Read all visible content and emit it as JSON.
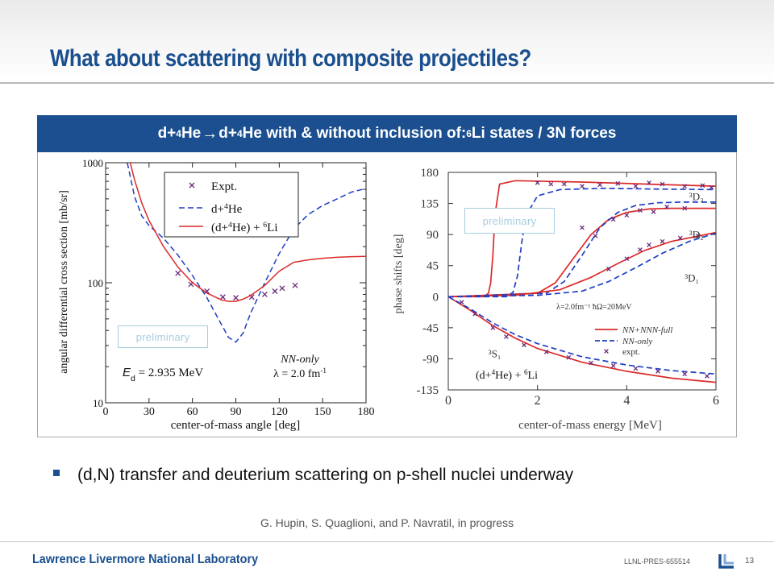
{
  "slide": {
    "title": "What about scattering with composite projectiles?",
    "banner": {
      "part1": "d+",
      "sup1": "4",
      "part2": "He",
      "arrow": "→",
      "part3": "d+",
      "sup2": "4",
      "part4": "He with & without inclusion of: ",
      "sup3": "6",
      "part5": "Li states / 3N forces"
    },
    "bullet": "(d,N) transfer and deuterium scattering on p-shell nuclei underway",
    "citation": "G. Hupin, S. Quaglioni, and P. Navratil, in progress",
    "footer": {
      "lab": "Lawrence Livermore National Laboratory",
      "code": "LLNL-PRES-655514",
      "page": "13"
    },
    "colors": {
      "brand": "#1b4f8f",
      "title": "#1a4f8e",
      "red": "#dc2a2a",
      "blue": "#1f3fc4",
      "expt": "#6a2a7a",
      "watermark": "#a8cde0"
    }
  },
  "chart_data": [
    {
      "type": "line",
      "xlabel": "center-of-mass angle [deg]",
      "ylabel": "angular differential cross section [mb/sr]",
      "xlim": [
        0,
        180
      ],
      "ylim": [
        10,
        1000
      ],
      "yscale": "log",
      "xticks": [
        "0",
        "30",
        "60",
        "90",
        "120",
        "150",
        "180"
      ],
      "yticks": [
        "10",
        "100",
        "1000"
      ],
      "legend": {
        "position": "top-center",
        "entries": [
          "Expt.",
          "d+4He",
          "(d+4He) + 6Li"
        ]
      },
      "legend_parts": {
        "expt": "Expt.",
        "blue_a": "d+",
        "blue_sup": "4",
        "blue_b": "He",
        "red_a": "(d+",
        "red_sup1": "4",
        "red_b": "He) + ",
        "red_sup2": "6",
        "red_c": "Li"
      },
      "watermark": "preliminary",
      "energy_label": {
        "symbol": "E",
        "sub": "d",
        "value": " = 2.935 MeV"
      },
      "nn_label": {
        "line1": "NN-only",
        "line2a": "λ = 2.0 fm",
        "line2sup": "-1"
      },
      "series": [
        {
          "name": "Expt.",
          "style": "markers",
          "x": [
            50,
            59,
            70,
            81,
            90,
            101,
            110,
            117,
            122,
            131
          ],
          "y": [
            120,
            97,
            85,
            76,
            75,
            76,
            80,
            85,
            90,
            95
          ]
        },
        {
          "name": "d+4He",
          "style": "dashed",
          "x": [
            15,
            20,
            25,
            30,
            40,
            50,
            60,
            70,
            80,
            85,
            90,
            95,
            100,
            110,
            120,
            130,
            140,
            150,
            160,
            170,
            180
          ],
          "y": [
            1000,
            520,
            360,
            300,
            235,
            170,
            115,
            75,
            45,
            35,
            32,
            38,
            55,
            100,
            175,
            280,
            370,
            440,
            500,
            570,
            610
          ]
        },
        {
          "name": "(d+4He) + 6Li",
          "style": "solid",
          "x": [
            17,
            20,
            25,
            30,
            40,
            50,
            60,
            70,
            80,
            85,
            90,
            95,
            100,
            110,
            120,
            130,
            140,
            150,
            160,
            170,
            180
          ],
          "y": [
            1000,
            720,
            460,
            330,
            200,
            135,
            100,
            82,
            72,
            70,
            70,
            73,
            78,
            95,
            125,
            148,
            155,
            160,
            163,
            165,
            166
          ]
        }
      ]
    },
    {
      "type": "line",
      "xlabel": "center-of-mass energy [MeV]",
      "ylabel": "phase shifts [deg]",
      "xlim": [
        0,
        6
      ],
      "ylim": [
        -135,
        180
      ],
      "xticks": [
        "0",
        "2",
        "4",
        "6"
      ],
      "yticks": [
        "180",
        "135",
        "90",
        "45",
        "0",
        "-45",
        "-90",
        "-135"
      ],
      "legend": {
        "position": "lower-right",
        "entries": [
          "NN+NNN-full",
          "NN-only",
          "expt."
        ]
      },
      "legend_parts": {
        "full": "NN+NNN-full",
        "nn": "NN-only",
        "expt": "expt."
      },
      "watermark": "preliminary",
      "parameter_label": "λ=2.0fm⁻¹  ħΩ=20MeV",
      "system_label": {
        "a": "(d+",
        "sup1": "4",
        "b": "He) + ",
        "sup2": "6",
        "c": "Li"
      },
      "wave_labels": [
        {
          "text": "³D₃",
          "x": 5.4,
          "y": 140
        },
        {
          "text": "³D₂",
          "x": 5.4,
          "y": 85
        },
        {
          "text": "³D₁",
          "x": 5.3,
          "y": 22
        },
        {
          "text": "³S₁",
          "x": 0.9,
          "y": -88
        }
      ],
      "series": [
        {
          "name": "3D3 NN+NNN-full",
          "style": "solid",
          "x": [
            0,
            0.8,
            0.9,
            0.95,
            1.0,
            1.05,
            1.15,
            1.5,
            3,
            4.5,
            6
          ],
          "y": [
            0,
            0,
            5,
            20,
            60,
            120,
            163,
            168,
            166,
            163,
            160
          ]
        },
        {
          "name": "3D3 NN-only",
          "style": "dashed",
          "x": [
            0,
            1.3,
            1.45,
            1.55,
            1.65,
            1.75,
            2.0,
            2.5,
            3.5,
            4.5,
            6
          ],
          "y": [
            0,
            0,
            6,
            30,
            80,
            118,
            146,
            155,
            157,
            156,
            155
          ]
        },
        {
          "name": "3D2 NN+NNN-full",
          "style": "solid",
          "x": [
            0,
            2.0,
            2.4,
            2.8,
            3.2,
            3.6,
            4.0,
            4.5,
            5,
            6
          ],
          "y": [
            0,
            5,
            20,
            55,
            90,
            112,
            122,
            127,
            128,
            128
          ]
        },
        {
          "name": "3D2 NN-only",
          "style": "dashed",
          "x": [
            0,
            2.2,
            2.6,
            3.0,
            3.4,
            3.8,
            4.2,
            4.7,
            5.2,
            6
          ],
          "y": [
            0,
            5,
            22,
            60,
            100,
            122,
            132,
            136,
            137,
            137
          ]
        },
        {
          "name": "3D1 NN+NNN-full",
          "style": "solid",
          "x": [
            0,
            1.5,
            2.5,
            3.2,
            3.8,
            4.4,
            5.0,
            6
          ],
          "y": [
            0,
            2,
            10,
            28,
            48,
            67,
            80,
            93
          ]
        },
        {
          "name": "3D1 NN-only",
          "style": "dashed",
          "x": [
            0,
            2.0,
            3.0,
            3.6,
            4.2,
            4.8,
            5.4,
            6
          ],
          "y": [
            0,
            2,
            8,
            22,
            42,
            63,
            80,
            92
          ]
        },
        {
          "name": "3S1 NN+NNN-full",
          "style": "solid",
          "x": [
            0,
            0.5,
            1,
            1.5,
            2,
            3,
            4,
            5,
            6
          ],
          "y": [
            0,
            -20,
            -42,
            -60,
            -75,
            -95,
            -108,
            -118,
            -124
          ]
        },
        {
          "name": "3S1 NN-only",
          "style": "dashed",
          "x": [
            0,
            0.5,
            1,
            1.5,
            2,
            3,
            4,
            5,
            6
          ],
          "y": [
            0,
            -18,
            -38,
            -55,
            -68,
            -87,
            -99,
            -107,
            -112
          ]
        },
        {
          "name": "expt. 3D3",
          "style": "markers",
          "x": [
            2.0,
            2.3,
            2.6,
            3.0,
            3.4,
            3.8,
            4.2,
            4.5,
            4.8,
            5.3,
            5.7,
            5.9
          ],
          "y": [
            165,
            163,
            163,
            160,
            162,
            164,
            160,
            165,
            163,
            160,
            161,
            158
          ]
        },
        {
          "name": "expt. 3D2",
          "style": "markers",
          "x": [
            3.0,
            3.3,
            3.7,
            4.0,
            4.3,
            4.6,
            4.9,
            5.3
          ],
          "y": [
            100,
            88,
            112,
            118,
            125,
            123,
            130,
            128
          ]
        },
        {
          "name": "expt. 3D1",
          "style": "markers",
          "x": [
            3.6,
            4.0,
            4.3,
            4.5,
            4.8,
            5.2,
            5.6
          ],
          "y": [
            40,
            55,
            68,
            75,
            80,
            85,
            88
          ]
        },
        {
          "name": "expt. 3S1",
          "style": "markers",
          "x": [
            0.3,
            0.6,
            1.0,
            1.3,
            1.7,
            2.2,
            2.7,
            3.2,
            3.7,
            4.2,
            4.7,
            5.3,
            5.8
          ],
          "y": [
            -8,
            -25,
            -45,
            -58,
            -70,
            -80,
            -88,
            -96,
            -100,
            -104,
            -108,
            -112,
            -115
          ]
        }
      ]
    }
  ]
}
